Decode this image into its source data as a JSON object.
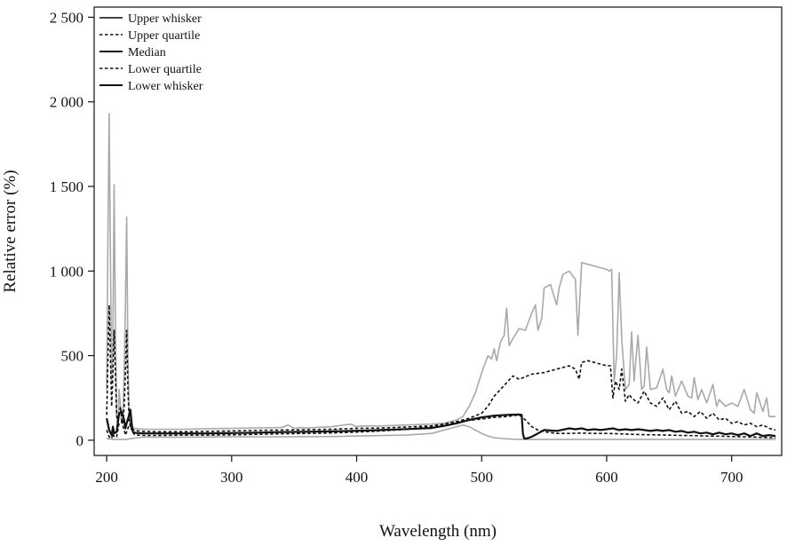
{
  "chart_data": {
    "type": "line",
    "title": "",
    "xlabel": "Wavelength (nm)",
    "ylabel": "Relative error (%)",
    "xlim": [
      190,
      740
    ],
    "ylim": [
      -90,
      2560
    ],
    "x_ticks": [
      200,
      300,
      400,
      500,
      600,
      700
    ],
    "x_tick_labels": [
      "200",
      "300",
      "400",
      "500",
      "600",
      "700"
    ],
    "y_ticks": [
      0,
      500,
      1000,
      1500,
      2000,
      2500
    ],
    "y_tick_labels": [
      "0",
      "500",
      "1 000",
      "1 500",
      "2 000",
      "2 500"
    ],
    "grid": false,
    "legend_position": "top-left",
    "series": [
      {
        "name": "Upper whisker",
        "color": "#a9a9a9",
        "dash": "solid",
        "width": 1.6,
        "x": [
          200,
          201,
          202,
          203,
          204,
          205,
          206,
          207,
          208,
          209,
          210,
          211,
          212,
          213,
          214,
          215,
          216,
          217,
          218,
          219,
          220,
          221,
          222,
          225,
          230,
          240,
          250,
          260,
          280,
          300,
          320,
          340,
          345,
          350,
          355,
          360,
          380,
          395,
          400,
          405,
          420,
          440,
          460,
          470,
          480,
          485,
          490,
          495,
          500,
          505,
          508,
          510,
          512,
          515,
          518,
          520,
          522,
          525,
          530,
          535,
          540,
          543,
          545,
          548,
          550,
          555,
          560,
          562,
          565,
          570,
          575,
          577,
          580,
          585,
          590,
          595,
          600,
          602,
          604,
          606,
          608,
          610,
          612,
          615,
          618,
          620,
          622,
          625,
          628,
          630,
          632,
          635,
          640,
          645,
          648,
          650,
          652,
          655,
          660,
          665,
          668,
          670,
          673,
          676,
          680,
          685,
          688,
          690,
          695,
          700,
          705,
          710,
          715,
          718,
          720,
          725,
          728,
          730,
          735
        ],
        "y": [
          300,
          1200,
          1930,
          1100,
          350,
          600,
          1510,
          700,
          150,
          80,
          300,
          200,
          100,
          150,
          400,
          800,
          1320,
          500,
          150,
          90,
          80,
          75,
          70,
          68,
          65,
          65,
          65,
          65,
          68,
          70,
          72,
          75,
          90,
          70,
          75,
          72,
          80,
          95,
          80,
          85,
          85,
          90,
          95,
          100,
          120,
          140,
          200,
          280,
          400,
          500,
          480,
          540,
          470,
          580,
          620,
          780,
          560,
          600,
          660,
          650,
          750,
          800,
          650,
          720,
          900,
          920,
          800,
          900,
          980,
          1000,
          950,
          620,
          1050,
          1040,
          1030,
          1020,
          1010,
          1000,
          1010,
          350,
          500,
          990,
          600,
          300,
          330,
          640,
          350,
          620,
          300,
          320,
          550,
          300,
          310,
          420,
          300,
          280,
          380,
          260,
          350,
          260,
          250,
          370,
          240,
          300,
          220,
          330,
          200,
          240,
          200,
          220,
          200,
          300,
          180,
          160,
          280,
          170,
          250,
          140,
          140
        ]
      },
      {
        "name": "Upper quartile",
        "color": "#111111",
        "dash": "dotted",
        "width": 1.6,
        "x": [
          200,
          202,
          203,
          204,
          205,
          206,
          207,
          208,
          209,
          210,
          211,
          212,
          213,
          214,
          215,
          216,
          217,
          218,
          219,
          220,
          221,
          222,
          225,
          230,
          240,
          260,
          280,
          300,
          320,
          340,
          360,
          380,
          400,
          420,
          440,
          460,
          470,
          480,
          490,
          500,
          505,
          510,
          515,
          520,
          525,
          530,
          540,
          550,
          560,
          570,
          575,
          578,
          580,
          585,
          590,
          595,
          600,
          603,
          605,
          607,
          610,
          612,
          615,
          618,
          620,
          625,
          630,
          635,
          640,
          645,
          650,
          655,
          660,
          665,
          670,
          675,
          680,
          685,
          690,
          695,
          700,
          705,
          710,
          715,
          720,
          725,
          730,
          735
        ],
        "y": [
          150,
          800,
          500,
          200,
          400,
          650,
          400,
          150,
          100,
          150,
          200,
          120,
          100,
          200,
          400,
          650,
          300,
          120,
          80,
          70,
          65,
          60,
          55,
          52,
          50,
          50,
          52,
          55,
          58,
          60,
          62,
          65,
          70,
          72,
          78,
          85,
          95,
          110,
          130,
          160,
          200,
          260,
          300,
          340,
          380,
          360,
          390,
          400,
          420,
          440,
          420,
          360,
          460,
          470,
          460,
          450,
          440,
          440,
          250,
          350,
          300,
          420,
          230,
          270,
          250,
          220,
          290,
          220,
          200,
          250,
          180,
          230,
          160,
          170,
          140,
          170,
          130,
          160,
          120,
          130,
          100,
          110,
          90,
          100,
          80,
          90,
          70,
          60
        ]
      },
      {
        "name": "Median",
        "color": "#111111",
        "dash": "solid",
        "width": 2.2,
        "x": [
          200,
          202,
          204,
          205,
          206,
          208,
          210,
          212,
          214,
          215,
          216,
          218,
          219,
          220,
          221,
          222,
          225,
          230,
          240,
          260,
          280,
          300,
          320,
          340,
          360,
          380,
          400,
          420,
          440,
          460,
          470,
          480,
          490,
          500,
          510,
          520,
          530,
          532,
          533,
          534,
          536,
          540,
          545,
          550,
          560,
          570,
          575,
          580,
          585,
          590,
          595,
          600,
          605,
          610,
          615,
          620,
          625,
          630,
          635,
          640,
          645,
          650,
          655,
          660,
          665,
          670,
          675,
          680,
          685,
          690,
          695,
          700,
          705,
          710,
          715,
          720,
          725,
          730,
          735
        ],
        "y": [
          130,
          60,
          30,
          80,
          40,
          50,
          160,
          170,
          120,
          70,
          100,
          150,
          180,
          100,
          50,
          45,
          42,
          40,
          40,
          40,
          40,
          42,
          45,
          48,
          50,
          52,
          56,
          60,
          66,
          72,
          85,
          100,
          120,
          135,
          145,
          150,
          152,
          150,
          40,
          10,
          10,
          20,
          40,
          60,
          55,
          70,
          65,
          70,
          60,
          65,
          60,
          65,
          70,
          60,
          65,
          60,
          65,
          60,
          55,
          60,
          55,
          60,
          50,
          55,
          45,
          50,
          40,
          45,
          35,
          45,
          35,
          40,
          30,
          40,
          25,
          40,
          25,
          30,
          25
        ]
      },
      {
        "name": "Lower quartile",
        "color": "#111111",
        "dash": "dotted",
        "width": 1.6,
        "x": [
          200,
          202,
          204,
          205,
          206,
          208,
          210,
          212,
          214,
          215,
          216,
          218,
          219,
          220,
          222,
          225,
          230,
          240,
          260,
          280,
          300,
          320,
          340,
          360,
          380,
          400,
          420,
          440,
          460,
          470,
          480,
          490,
          500,
          510,
          520,
          530,
          535,
          540,
          545,
          550,
          560,
          570,
          580,
          590,
          600,
          610,
          620,
          630,
          640,
          650,
          660,
          670,
          680,
          690,
          700,
          710,
          720,
          730,
          735
        ],
        "y": [
          60,
          20,
          10,
          40,
          20,
          20,
          100,
          110,
          60,
          30,
          50,
          90,
          100,
          60,
          35,
          30,
          28,
          28,
          30,
          30,
          32,
          35,
          38,
          40,
          43,
          48,
          55,
          65,
          80,
          95,
          110,
          118,
          125,
          135,
          140,
          150,
          120,
          80,
          60,
          50,
          40,
          40,
          42,
          40,
          40,
          38,
          35,
          33,
          32,
          30,
          28,
          27,
          25,
          24,
          22,
          20,
          18,
          15,
          15
        ]
      },
      {
        "name": "Lower whisker",
        "color": "#a9a9a9",
        "dash": "solid",
        "width": 1.6,
        "x": [
          200,
          205,
          210,
          215,
          220,
          225,
          230,
          260,
          300,
          340,
          380,
          400,
          440,
          460,
          470,
          480,
          485,
          490,
          495,
          500,
          505,
          510,
          520,
          530,
          540,
          560,
          600,
          650,
          700,
          735
        ],
        "y": [
          10,
          5,
          5,
          5,
          10,
          15,
          18,
          18,
          20,
          20,
          22,
          25,
          30,
          40,
          60,
          80,
          90,
          80,
          60,
          40,
          25,
          15,
          8,
          5,
          5,
          5,
          5,
          5,
          5,
          5
        ]
      }
    ]
  }
}
